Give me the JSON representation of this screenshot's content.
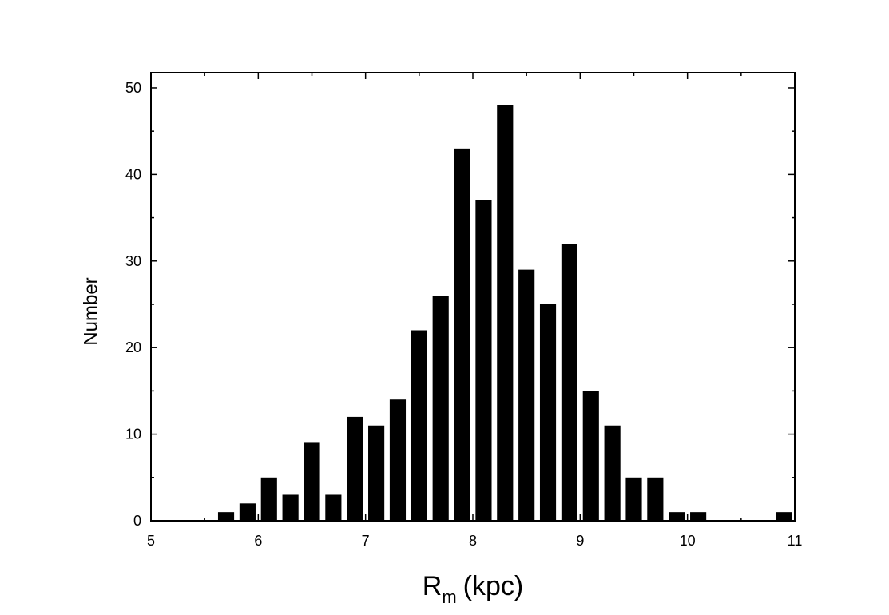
{
  "chart_data": {
    "type": "bar",
    "x": [
      5.7,
      5.9,
      6.1,
      6.3,
      6.5,
      6.7,
      6.9,
      7.1,
      7.3,
      7.5,
      7.7,
      7.9,
      8.1,
      8.3,
      8.5,
      8.7,
      8.9,
      9.1,
      9.3,
      9.5,
      9.7,
      9.9,
      10.1,
      10.3,
      10.5,
      10.7,
      10.9
    ],
    "values": [
      1,
      2,
      5,
      3,
      9,
      3,
      12,
      11,
      14,
      22,
      26,
      43,
      37,
      48,
      29,
      25,
      32,
      15,
      11,
      5,
      5,
      1,
      1,
      0,
      0,
      0,
      1
    ],
    "color": "#000000",
    "xlabel": {
      "symbol": "R",
      "subscript": "m",
      "unit": "(kpc)"
    },
    "ylabel": "Number",
    "xlim": [
      5,
      11
    ],
    "xticks": [
      5,
      6,
      7,
      8,
      9,
      10,
      11
    ],
    "xminorticks": [
      5.5,
      6.5,
      7.5,
      8.5,
      9.5,
      10.5
    ],
    "ylim": [
      0,
      51.75
    ],
    "yticks": [
      0,
      10,
      20,
      30,
      40,
      50
    ],
    "yminorticks": [
      5,
      15,
      25,
      35,
      45
    ]
  }
}
